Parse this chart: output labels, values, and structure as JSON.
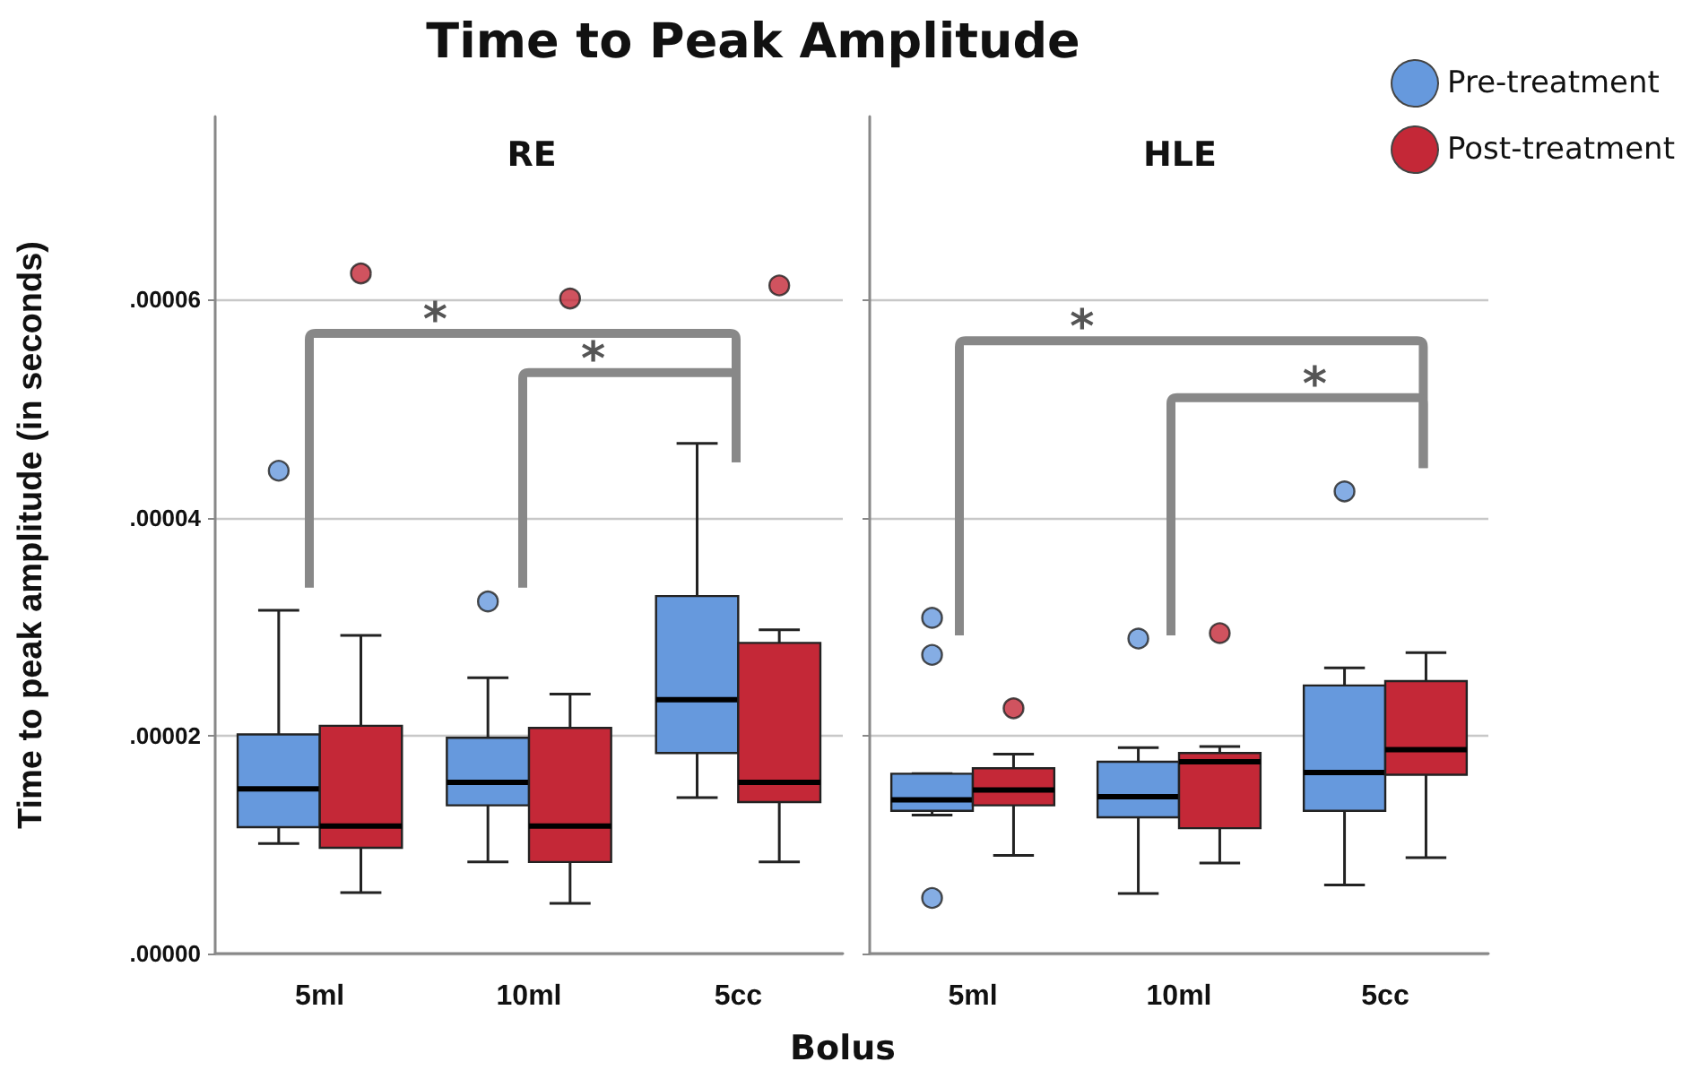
{
  "chart_data": [
    {
      "type": "box",
      "title": "Time to Peak Amplitude",
      "subtitle": "RE",
      "xlabel": "Bolus",
      "ylabel": "Time to peak amplitude (in seconds)",
      "categories": [
        "5ml",
        "10ml",
        "5cc"
      ],
      "series": [
        {
          "color": "#6699dd",
          "boxes": [
            {
              "low": 1.01e-05,
              "q1": 1.16e-05,
              "median": 1.51e-05,
              "q3": 2.01e-05,
              "high": 3.15e-05,
              "outliers": [
                4.43e-05
              ]
            },
            {
              "low": 8.4e-06,
              "q1": 1.36e-05,
              "median": 1.57e-05,
              "q3": 1.98e-05,
              "high": 2.53e-05,
              "outliers": [
                3.23e-05
              ]
            },
            {
              "low": 1.43e-05,
              "q1": 1.84e-05,
              "median": 2.33e-05,
              "q3": 3.28e-05,
              "high": 4.68e-05
            }
          ]
        },
        {
          "color": "#c42837",
          "boxes": [
            {
              "low": 5.6e-06,
              "q1": 9.7e-06,
              "median": 1.17e-05,
              "q3": 2.09e-05,
              "high": 2.92e-05,
              "outliers": [
                6.24e-05
              ]
            },
            {
              "low": 4.6e-06,
              "q1": 8.4e-06,
              "median": 1.17e-05,
              "q3": 2.07e-05,
              "high": 2.38e-05,
              "outliers": [
                6.01e-05
              ]
            },
            {
              "low": 8.4e-06,
              "q1": 1.39e-05,
              "median": 1.57e-05,
              "q3": 2.85e-05,
              "high": 2.97e-05,
              "outliers": [
                6.13e-05
              ]
            }
          ]
        }
      ],
      "ylim": [
        0,
        7.68e-05
      ],
      "yticks": [
        {
          "value": 0,
          "label": ".00000"
        },
        {
          "value": 2e-05,
          "label": ".00002"
        },
        {
          "value": 4e-05,
          "label": ".00004"
        },
        {
          "value": 6e-05,
          "label": ".00006"
        }
      ],
      "grid": "y",
      "annotations": [
        "*",
        "*"
      ]
    },
    {
      "type": "box",
      "subtitle": "HLE",
      "categories": [
        "5ml",
        "10ml",
        "5cc"
      ],
      "series": [
        {
          "name": "Pre-treatment",
          "color": "#6699dd",
          "boxes": [
            {
              "low": 1.27e-05,
              "q1": 1.31e-05,
              "median": 1.41e-05,
              "q3": 1.65e-05,
              "high": 1.65e-05,
              "outliers": [
                5.1e-06,
                2.74e-05,
                3.08e-05
              ]
            },
            {
              "low": 5.5e-06,
              "q1": 1.25e-05,
              "median": 1.44e-05,
              "q3": 1.76e-05,
              "high": 1.89e-05,
              "outliers": [
                2.89e-05
              ]
            },
            {
              "low": 6.3e-06,
              "q1": 1.31e-05,
              "median": 1.66e-05,
              "q3": 2.46e-05,
              "high": 2.62e-05,
              "outliers": [
                4.24e-05
              ]
            }
          ]
        },
        {
          "name": "Post-treatment",
          "color": "#c42837",
          "boxes": [
            {
              "low": 9e-06,
              "q1": 1.36e-05,
              "median": 1.5e-05,
              "q3": 1.7e-05,
              "high": 1.83e-05,
              "outliers": [
                2.25e-05
              ]
            },
            {
              "low": 8.3e-06,
              "q1": 1.15e-05,
              "median": 1.76e-05,
              "q3": 1.84e-05,
              "high": 1.9e-05,
              "outliers": [
                2.94e-05
              ]
            },
            {
              "low": 8.8e-06,
              "q1": 1.64e-05,
              "median": 1.87e-05,
              "q3": 2.5e-05,
              "high": 2.76e-05
            }
          ]
        }
      ],
      "ylim": [
        0,
        7.68e-05
      ],
      "yticks": [
        {
          "value": 0,
          "label": null
        },
        {
          "value": 2e-05,
          "label": null
        },
        {
          "value": 4e-05,
          "label": null
        },
        {
          "value": 6e-05,
          "label": null
        }
      ],
      "tick_labels": "x",
      "grid": "y",
      "legend": "top right",
      "annotations": [
        "*",
        "*"
      ]
    }
  ]
}
